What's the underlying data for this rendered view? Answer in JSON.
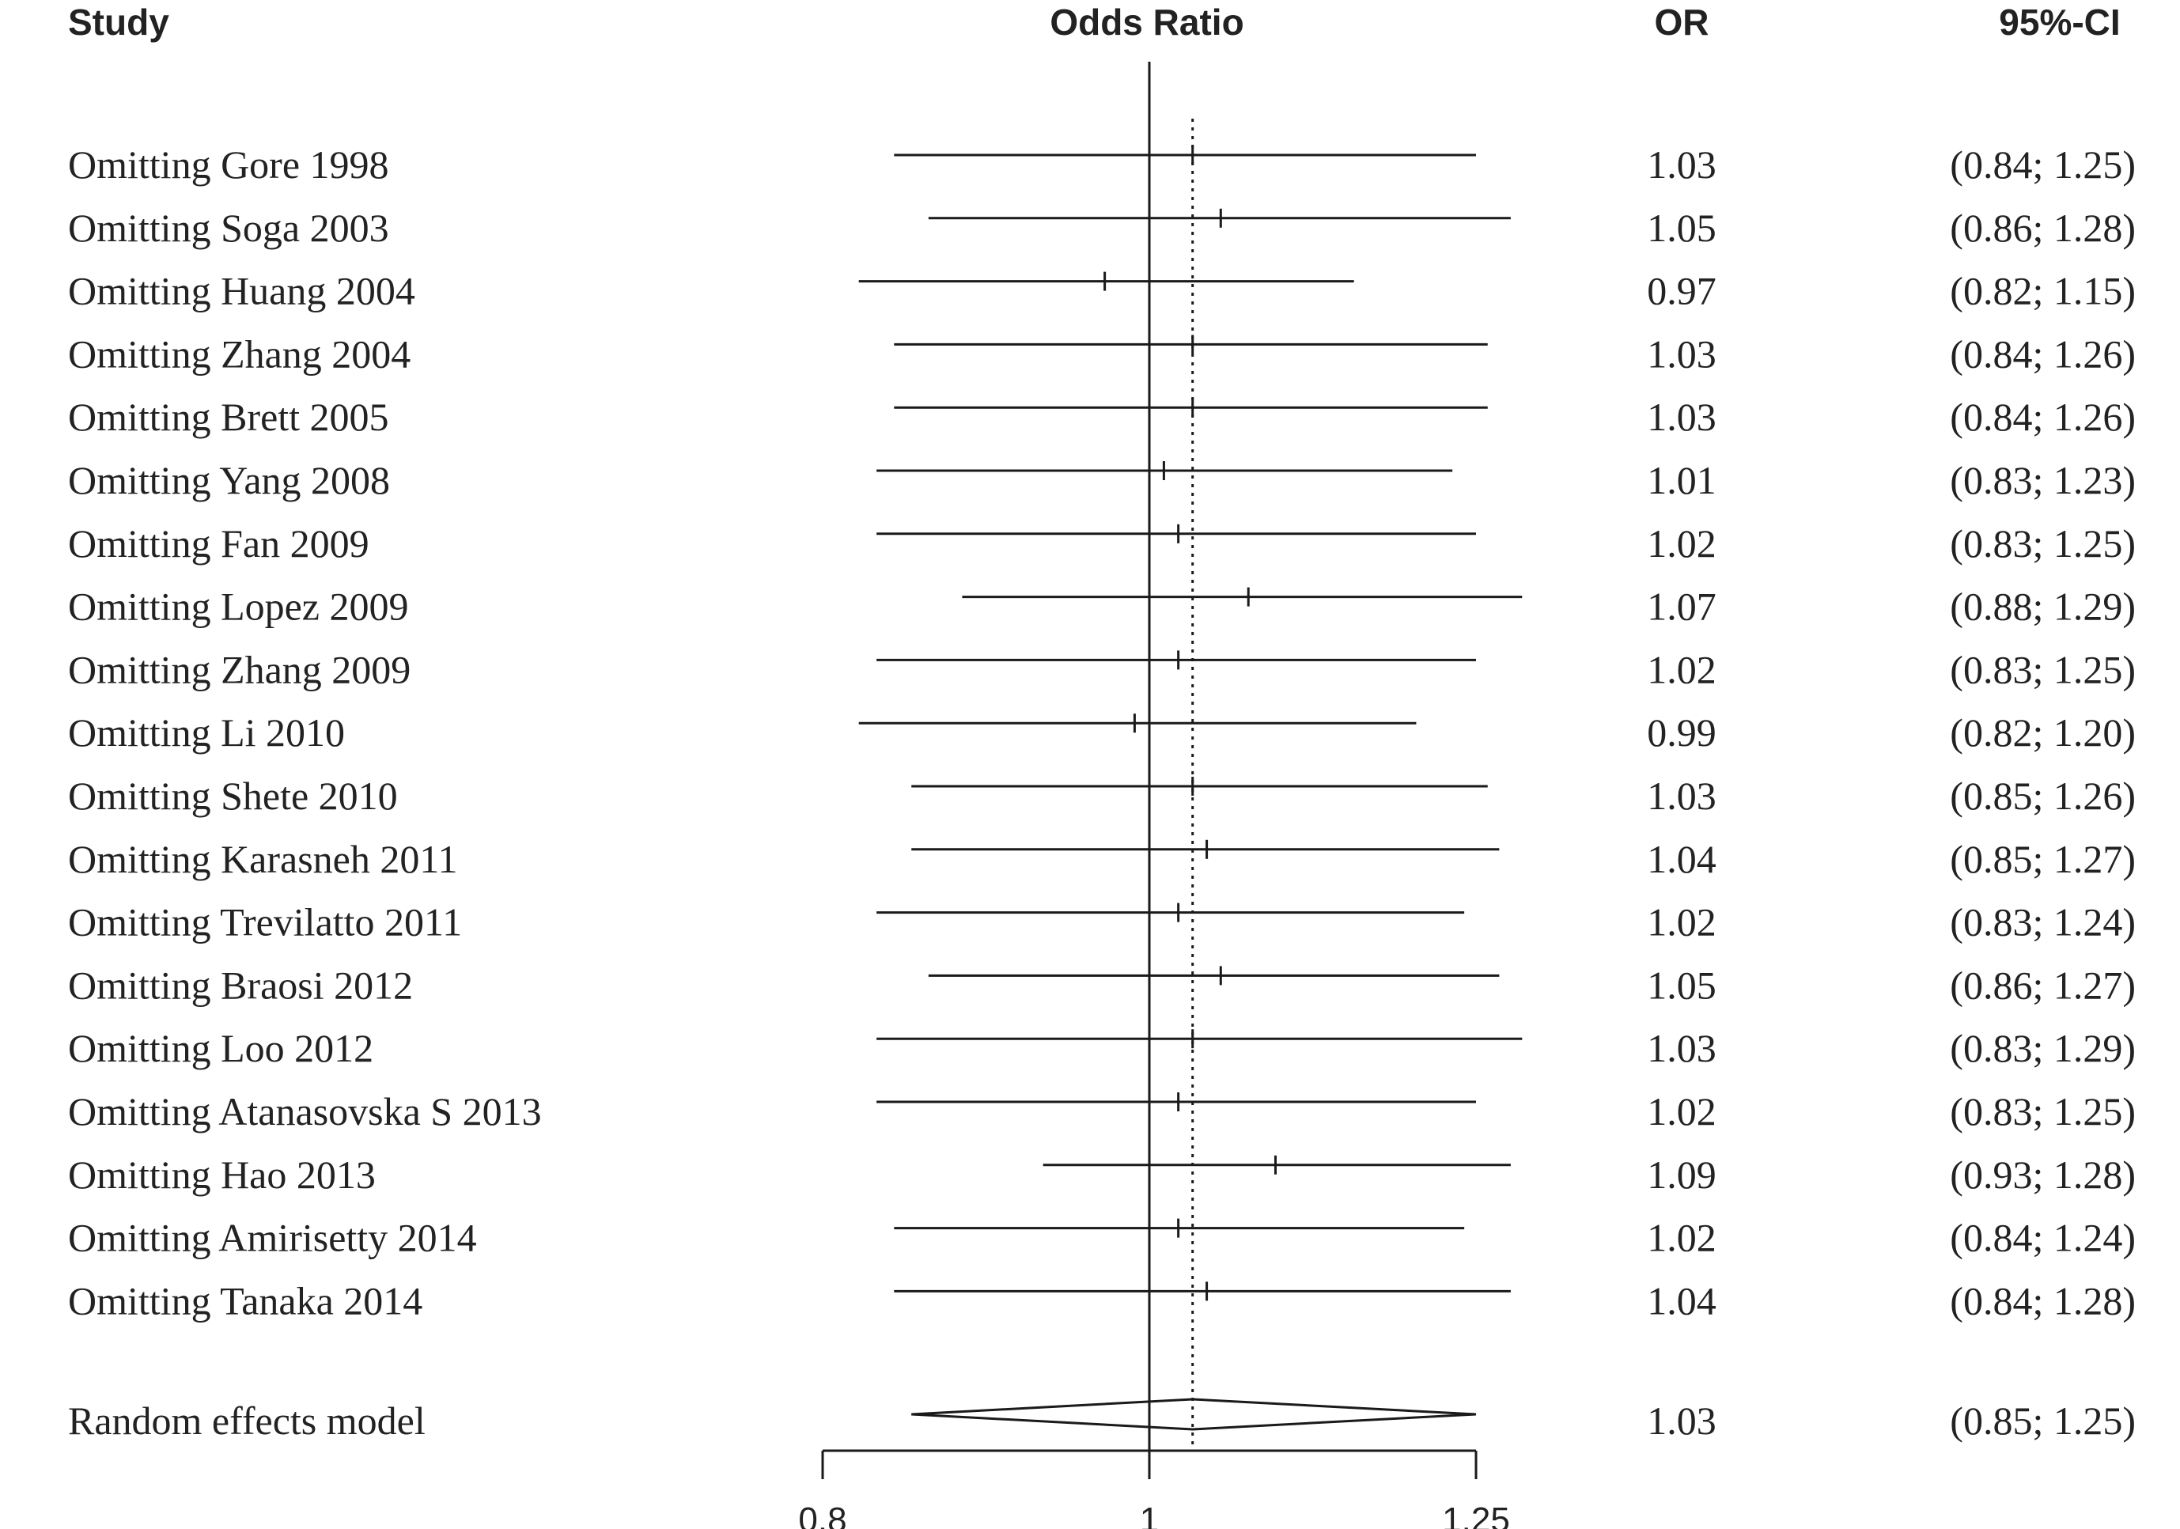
{
  "chart_data": {
    "type": "forest",
    "headers": {
      "study": "Study",
      "plot": "Odds Ratio",
      "or": "OR",
      "ci": "95%-CI"
    },
    "studies": [
      {
        "label": "Omitting Gore 1998",
        "or": 1.03,
        "lower": 0.84,
        "upper": 1.25,
        "or_text": "1.03",
        "ci_text": "(0.84; 1.25)"
      },
      {
        "label": "Omitting Soga 2003",
        "or": 1.05,
        "lower": 0.86,
        "upper": 1.28,
        "or_text": "1.05",
        "ci_text": "(0.86; 1.28)"
      },
      {
        "label": "Omitting Huang 2004",
        "or": 0.97,
        "lower": 0.82,
        "upper": 1.15,
        "or_text": "0.97",
        "ci_text": "(0.82; 1.15)"
      },
      {
        "label": "Omitting Zhang 2004",
        "or": 1.03,
        "lower": 0.84,
        "upper": 1.26,
        "or_text": "1.03",
        "ci_text": "(0.84; 1.26)"
      },
      {
        "label": "Omitting Brett 2005",
        "or": 1.03,
        "lower": 0.84,
        "upper": 1.26,
        "or_text": "1.03",
        "ci_text": "(0.84; 1.26)"
      },
      {
        "label": "Omitting Yang 2008",
        "or": 1.01,
        "lower": 0.83,
        "upper": 1.23,
        "or_text": "1.01",
        "ci_text": "(0.83; 1.23)"
      },
      {
        "label": "Omitting Fan 2009",
        "or": 1.02,
        "lower": 0.83,
        "upper": 1.25,
        "or_text": "1.02",
        "ci_text": "(0.83; 1.25)"
      },
      {
        "label": "Omitting Lopez 2009",
        "or": 1.07,
        "lower": 0.88,
        "upper": 1.29,
        "or_text": "1.07",
        "ci_text": "(0.88; 1.29)"
      },
      {
        "label": "Omitting Zhang 2009",
        "or": 1.02,
        "lower": 0.83,
        "upper": 1.25,
        "or_text": "1.02",
        "ci_text": "(0.83; 1.25)"
      },
      {
        "label": "Omitting Li 2010",
        "or": 0.99,
        "lower": 0.82,
        "upper": 1.2,
        "or_text": "0.99",
        "ci_text": "(0.82; 1.20)"
      },
      {
        "label": "Omitting Shete 2010",
        "or": 1.03,
        "lower": 0.85,
        "upper": 1.26,
        "or_text": "1.03",
        "ci_text": "(0.85; 1.26)"
      },
      {
        "label": "Omitting Karasneh 2011",
        "or": 1.04,
        "lower": 0.85,
        "upper": 1.27,
        "or_text": "1.04",
        "ci_text": "(0.85; 1.27)"
      },
      {
        "label": "Omitting Trevilatto 2011",
        "or": 1.02,
        "lower": 0.83,
        "upper": 1.24,
        "or_text": "1.02",
        "ci_text": "(0.83; 1.24)"
      },
      {
        "label": "Omitting Braosi 2012",
        "or": 1.05,
        "lower": 0.86,
        "upper": 1.27,
        "or_text": "1.05",
        "ci_text": "(0.86; 1.27)"
      },
      {
        "label": "Omitting Loo 2012",
        "or": 1.03,
        "lower": 0.83,
        "upper": 1.29,
        "or_text": "1.03",
        "ci_text": "(0.83; 1.29)"
      },
      {
        "label": "Omitting Atanasovska S 2013",
        "or": 1.02,
        "lower": 0.83,
        "upper": 1.25,
        "or_text": "1.02",
        "ci_text": "(0.83; 1.25)"
      },
      {
        "label": "Omitting Hao 2013",
        "or": 1.09,
        "lower": 0.93,
        "upper": 1.28,
        "or_text": "1.09",
        "ci_text": "(0.93; 1.28)"
      },
      {
        "label": "Omitting Amirisetty 2014",
        "or": 1.02,
        "lower": 0.84,
        "upper": 1.24,
        "or_text": "1.02",
        "ci_text": "(0.84; 1.24)"
      },
      {
        "label": "Omitting Tanaka 2014",
        "or": 1.04,
        "lower": 0.84,
        "upper": 1.28,
        "or_text": "1.04",
        "ci_text": "(0.84; 1.28)"
      }
    ],
    "summary": {
      "label": "Random effects model",
      "or": 1.03,
      "lower": 0.85,
      "upper": 1.25,
      "or_text": "1.03",
      "ci_text": "(0.85; 1.25)"
    },
    "x_axis": {
      "scale": "log",
      "ticks": [
        0.8,
        1,
        1.25
      ],
      "tick_labels": [
        "0.8",
        "1",
        "1.25"
      ],
      "xlim": [
        0.8,
        1.25
      ]
    },
    "reference_line": 1,
    "summary_line": 1.03,
    "colors": {
      "ink": "#1a1a1a",
      "text": "#222222",
      "background": "#ffffff"
    }
  }
}
